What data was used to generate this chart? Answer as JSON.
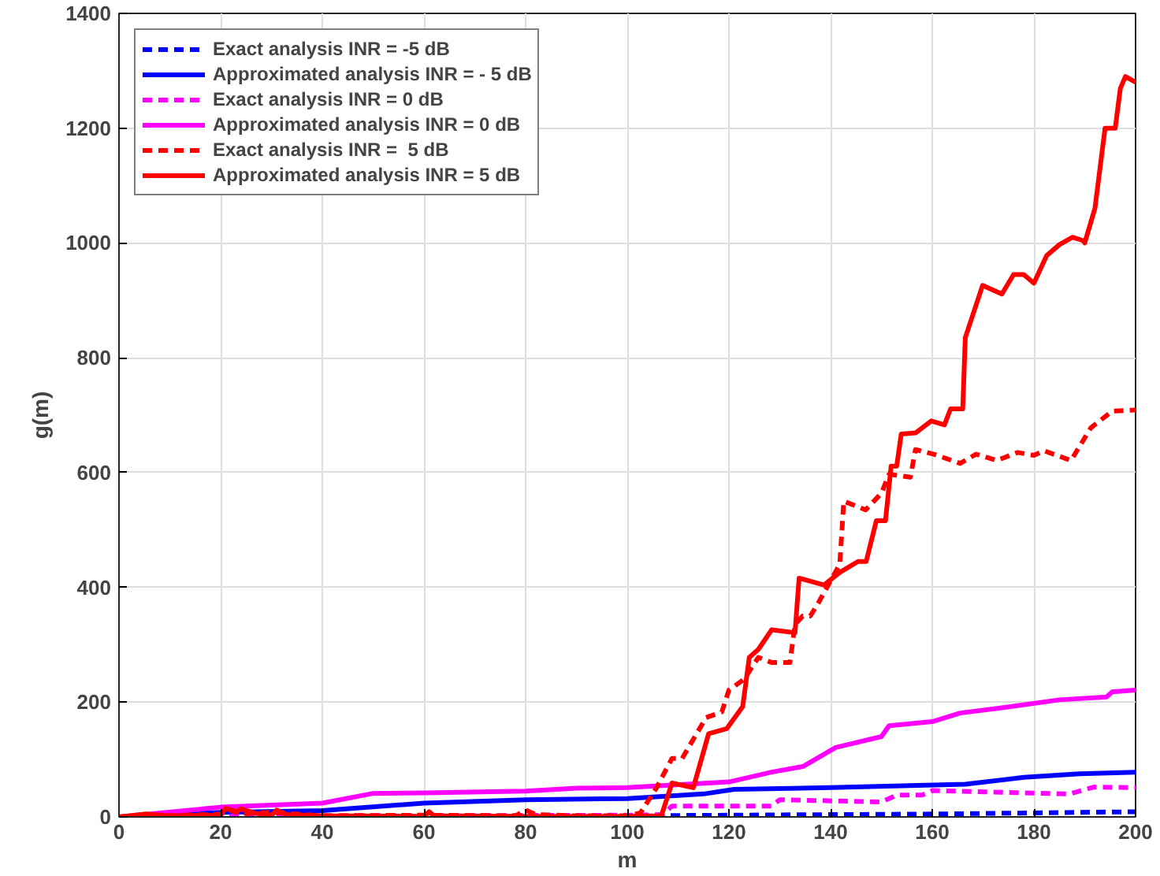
{
  "chart_data": {
    "type": "line",
    "xlabel": "m",
    "ylabel": "g(m)",
    "xlim": [
      0,
      200
    ],
    "ylim": [
      0,
      1400
    ],
    "xticks": [
      0,
      20,
      40,
      60,
      80,
      100,
      120,
      140,
      160,
      180,
      200
    ],
    "yticks": [
      0,
      200,
      400,
      600,
      800,
      1000,
      1200,
      1400
    ],
    "grid": true,
    "legend": "top left",
    "series": [
      {
        "name": "Exact analysis INR = -5 dB",
        "color": "#0000ff",
        "line_style": "dashed",
        "x": [
          0,
          40,
          80,
          100,
          120,
          140,
          160,
          180,
          200
        ],
        "values": [
          0,
          1,
          1,
          2,
          3,
          4,
          5,
          7,
          9
        ]
      },
      {
        "name": "Approximated analysis INR = - 5 dB",
        "color": "#0000ff",
        "line_style": "solid",
        "x": [
          0,
          20,
          40,
          60,
          80,
          100,
          115,
          121,
          140,
          166.5,
          178,
          189,
          200
        ],
        "values": [
          0,
          8,
          11,
          24,
          30,
          32,
          40,
          48,
          51,
          57,
          69,
          75,
          78
        ]
      },
      {
        "name": "Exact analysis INR = 0 dB",
        "color": "#ff00ff",
        "line_style": "dashed",
        "x": [
          0,
          50,
          100,
          107,
          108.8,
          128.4,
          130,
          150,
          153,
          158,
          160,
          187,
          191.8,
          200
        ],
        "values": [
          0,
          2,
          3,
          4,
          19,
          19,
          30,
          26,
          38,
          38,
          46,
          40,
          52,
          51
        ]
      },
      {
        "name": "Approximated analysis INR = 0 dB",
        "color": "#ff00ff",
        "line_style": "solid",
        "x": [
          0,
          20,
          40,
          50,
          60,
          80,
          90,
          100,
          120,
          128.4,
          134.6,
          141,
          150,
          151.5,
          160,
          165.5,
          173.7,
          185,
          194.3,
          195.4,
          200
        ],
        "values": [
          0,
          17,
          24,
          41,
          42,
          45,
          50,
          51,
          61,
          78,
          88,
          121,
          140,
          159,
          166,
          181,
          190,
          204,
          209,
          218,
          221
        ]
      },
      {
        "name": "Exact analysis INR =  5 dB",
        "color": "#ff0000",
        "line_style": "dashed",
        "x": [
          0,
          10,
          20,
          22,
          25,
          30,
          40,
          60,
          78,
          80,
          82,
          90,
          100,
          102.6,
          105.7,
          108.8,
          110.8,
          115.5,
          118.6,
          120,
          123,
          125.8,
          128.4,
          132,
          133,
          134.5,
          136,
          137.6,
          139.7,
          141.8,
          142.6,
          146.9,
          150,
          151.5,
          155.7,
          156.7,
          160.3,
          165.5,
          168.6,
          172.7,
          176.8,
          180,
          182,
          187.3,
          191.2,
          195.4,
          200
        ],
        "values": [
          0,
          2,
          5,
          12,
          6,
          8,
          2,
          3,
          2,
          12,
          4,
          2,
          2,
          7,
          50,
          102,
          102,
          173,
          183,
          221,
          240,
          278,
          269,
          269,
          335,
          350,
          350,
          373,
          407,
          440,
          550,
          535,
          564,
          597,
          592,
          640,
          632,
          616,
          632,
          621,
          635,
          630,
          638,
          621,
          678,
          707,
          709
        ]
      },
      {
        "name": "Approximated analysis INR = 5 dB",
        "color": "#ff0000",
        "line_style": "solid",
        "x": [
          0,
          5,
          10,
          20,
          21,
          23,
          24,
          27,
          30,
          31,
          33,
          40,
          60,
          61,
          62,
          80,
          100,
          106.7,
          108.8,
          113,
          116,
          119.6,
          122.7,
          124,
          125.8,
          128.4,
          133,
          133.8,
          138.7,
          141.8,
          145.4,
          147,
          149,
          150.8,
          151.9,
          153,
          153.9,
          156.7,
          159.8,
          162.4,
          163.6,
          166,
          166.5,
          169.9,
          173.7,
          176,
          178,
          180,
          182.5,
          185,
          187.6,
          189.7,
          190,
          192,
          194,
          196,
          197,
          198,
          200
        ],
        "values": [
          0,
          5,
          2,
          3,
          15,
          8,
          14,
          6,
          3,
          12,
          4,
          2,
          1,
          9,
          2,
          1,
          1,
          2,
          59,
          51,
          145,
          154,
          192,
          278,
          292,
          326,
          321,
          416,
          404,
          426,
          445,
          445,
          516,
          516,
          611,
          611,
          667,
          669,
          690,
          683,
          711,
          711,
          835,
          926,
          911,
          945,
          945,
          930,
          978,
          997,
          1010,
          1004,
          1000,
          1060,
          1200,
          1200,
          1269,
          1290,
          1280
        ]
      }
    ]
  }
}
